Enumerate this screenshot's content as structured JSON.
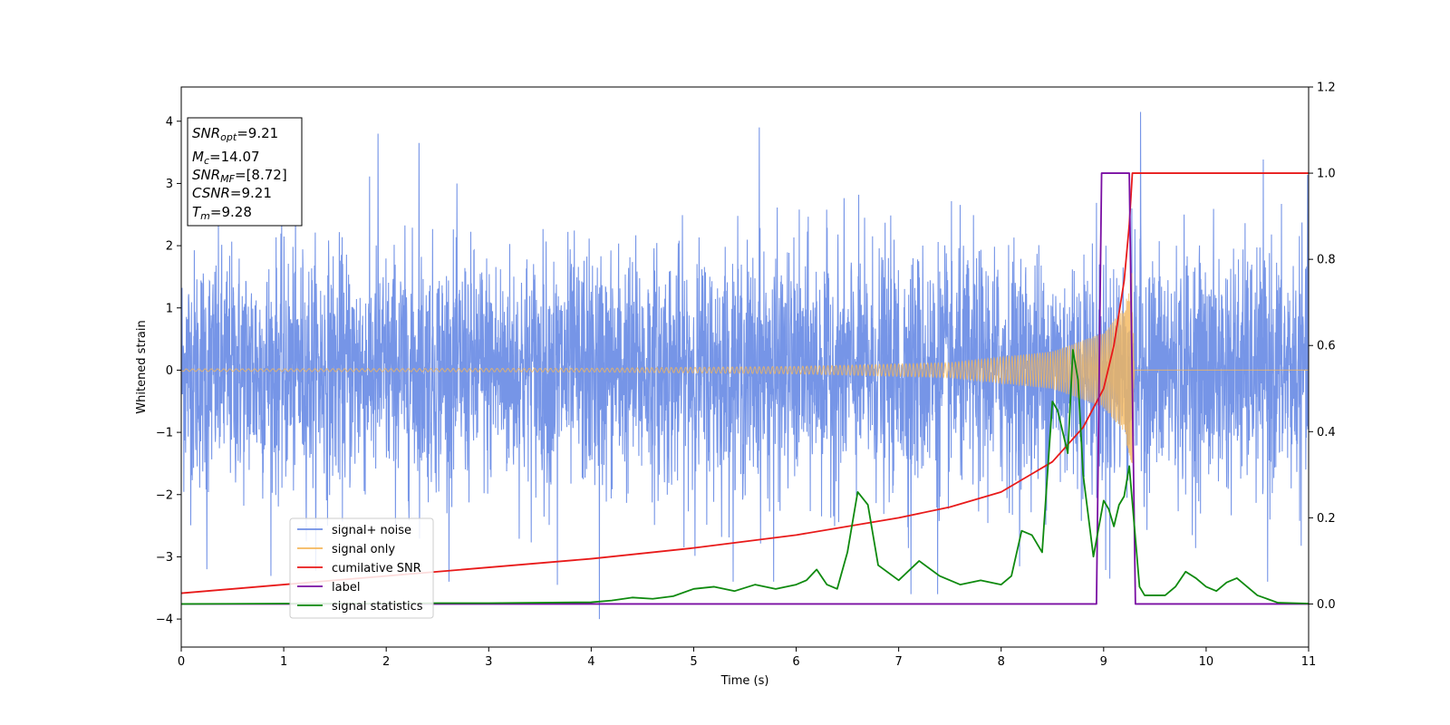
{
  "chart_data": {
    "type": "line",
    "xlabel": "Time (s)",
    "ylabel": "Whitened strain",
    "xlim": [
      0,
      11
    ],
    "ylim_left": [
      -4.45,
      4.55
    ],
    "ylim_right": [
      -0.1,
      1.2
    ],
    "x_ticks": [
      "0",
      "1",
      "2",
      "3",
      "4",
      "5",
      "6",
      "7",
      "8",
      "9",
      "10",
      "11"
    ],
    "y_ticks_left": [
      "4",
      "3",
      "2",
      "1",
      "0",
      "−1",
      "−2",
      "−3",
      "−4"
    ],
    "y_ticks_right": [
      "1.2",
      "1.0",
      "0.8",
      "0.6",
      "0.4",
      "0.2",
      "0.0"
    ],
    "legend_position": "lower-left",
    "info_box": {
      "line1_main": "SNR",
      "line1_sub": "opt",
      "line1_value": "=9.21",
      "line2_main": "M",
      "line2_sub": "c",
      "line2_value": "=14.07",
      "line3_main": "SNR",
      "line3_sub": "MF",
      "line3_value": "=[8.72]",
      "line4_main": "CSNR",
      "line4_value": "=9.21",
      "line5_main": "T",
      "line5_sub": "m",
      "line5_value": "=9.28"
    },
    "series": [
      {
        "name": "signal+ noise",
        "axis": "left",
        "color": "#6f8fe6",
        "description_of_values": "whitened noise, roughly ±2 sigma band with spikes up to about ±4",
        "envelope_hi": 2.0,
        "envelope_lo": -2.0,
        "spikes": [
          [
            1.92,
            3.8
          ],
          [
            2.32,
            3.65
          ],
          [
            5.64,
            3.9
          ],
          [
            9.36,
            4.15
          ],
          [
            4.08,
            -4.0
          ],
          [
            3.67,
            -3.45
          ],
          [
            0.25,
            -3.2
          ],
          [
            5.78,
            -3.4
          ],
          [
            7.12,
            -3.6
          ],
          [
            7.38,
            -3.6
          ],
          [
            10.6,
            -3.4
          ],
          [
            9.06,
            -3.35
          ]
        ]
      },
      {
        "name": "signal only",
        "axis": "left",
        "color": "#f4b75b",
        "description_of_values": "chirp with amplitude growing toward merger",
        "amplitude": [
          [
            0,
            0.02
          ],
          [
            4,
            0.03
          ],
          [
            6,
            0.06
          ],
          [
            7.5,
            0.12
          ],
          [
            8.5,
            0.3
          ],
          [
            9.0,
            0.6
          ],
          [
            9.2,
            1.0
          ],
          [
            9.28,
            1.6
          ],
          [
            9.3,
            0.0
          ],
          [
            11,
            0.0
          ]
        ]
      },
      {
        "name": "cumilative SNR",
        "axis": "right",
        "color": "#e81a1a",
        "x": [
          0,
          1,
          2,
          3,
          4,
          5,
          6,
          7,
          7.5,
          8,
          8.5,
          8.8,
          9.0,
          9.1,
          9.2,
          9.25,
          9.28,
          11
        ],
        "values": [
          0.025,
          0.045,
          0.065,
          0.085,
          0.105,
          0.13,
          0.16,
          0.2,
          0.225,
          0.26,
          0.33,
          0.41,
          0.5,
          0.6,
          0.75,
          0.88,
          1.0,
          1.0
        ]
      },
      {
        "name": "label",
        "axis": "right",
        "color": "#7a0fa3",
        "x": [
          0,
          8.93,
          8.98,
          9.25,
          9.31,
          11
        ],
        "values": [
          0,
          0,
          1,
          1,
          0,
          0
        ]
      },
      {
        "name": "signal statistics",
        "axis": "right",
        "color": "#0f8a0f",
        "x": [
          0,
          1,
          2,
          2.5,
          3,
          3.5,
          4,
          4.2,
          4.4,
          4.6,
          4.8,
          5.0,
          5.2,
          5.4,
          5.6,
          5.8,
          6.0,
          6.1,
          6.2,
          6.3,
          6.4,
          6.5,
          6.6,
          6.7,
          6.8,
          7.0,
          7.2,
          7.4,
          7.6,
          7.8,
          8.0,
          8.1,
          8.2,
          8.3,
          8.4,
          8.5,
          8.55,
          8.65,
          8.7,
          8.75,
          8.8,
          8.9,
          9.0,
          9.05,
          9.1,
          9.15,
          9.2,
          9.25,
          9.3,
          9.35,
          9.4,
          9.5,
          9.6,
          9.7,
          9.8,
          9.9,
          10.0,
          10.1,
          10.2,
          10.3,
          10.4,
          10.5,
          10.7,
          11
        ],
        "values": [
          0,
          0.001,
          0.001,
          0.002,
          0.002,
          0.003,
          0.004,
          0.008,
          0.015,
          0.012,
          0.018,
          0.035,
          0.04,
          0.03,
          0.045,
          0.035,
          0.045,
          0.055,
          0.08,
          0.045,
          0.035,
          0.12,
          0.26,
          0.23,
          0.09,
          0.055,
          0.1,
          0.065,
          0.045,
          0.055,
          0.045,
          0.065,
          0.17,
          0.16,
          0.12,
          0.47,
          0.45,
          0.35,
          0.59,
          0.52,
          0.3,
          0.11,
          0.24,
          0.22,
          0.18,
          0.23,
          0.25,
          0.32,
          0.18,
          0.04,
          0.02,
          0.02,
          0.02,
          0.04,
          0.075,
          0.06,
          0.04,
          0.03,
          0.05,
          0.06,
          0.04,
          0.02,
          0.003,
          0.001
        ]
      }
    ]
  }
}
